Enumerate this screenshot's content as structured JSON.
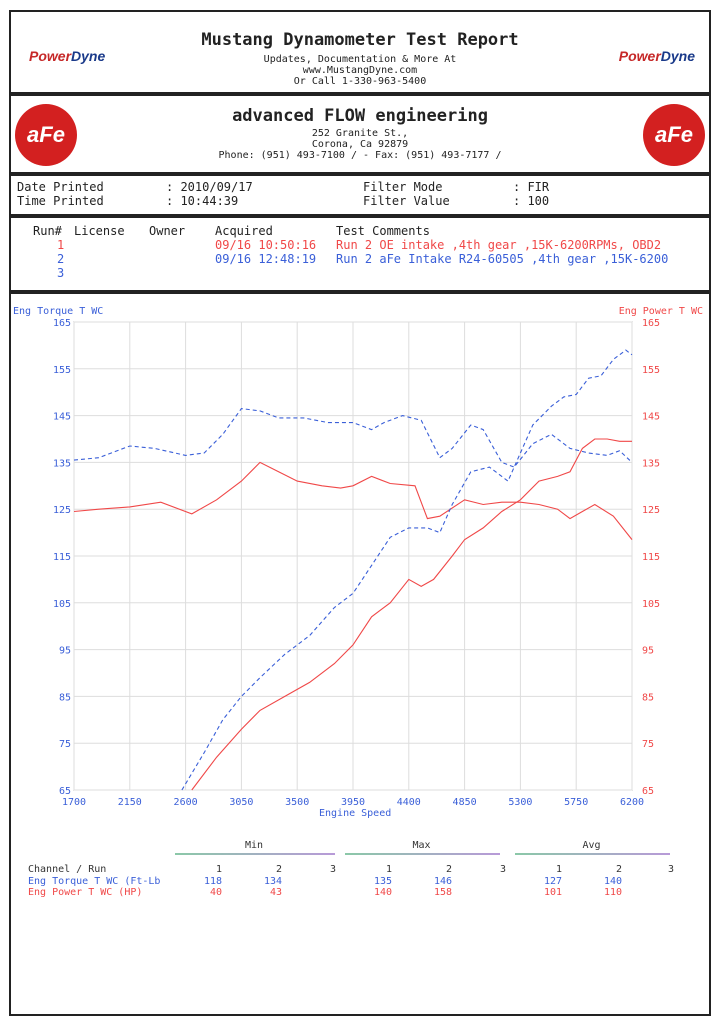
{
  "header": {
    "title": "Mustang Dynamometer Test Report",
    "line1": "Updates, Documentation & More At",
    "line2": "www.MustangDyne.com",
    "line3": "Or Call 1-330-963-5400",
    "logo": "PowerDyne"
  },
  "company": {
    "name": "advanced FLOW engineering",
    "address1": "252 Granite St.,",
    "address2": "Corona, Ca  92879",
    "phone": "Phone: (951) 493-7100 /  - Fax: (951) 493-7177 /",
    "logo": "aFe POWER"
  },
  "info": {
    "date_label": "Date Printed",
    "date_value": ": 2010/09/17",
    "time_label": "Time Printed",
    "time_value": ": 10:44:39",
    "mode_label": "Filter Mode",
    "mode_value": ": FIR",
    "fval_label": "Filter Value",
    "fval_value": ": 100"
  },
  "runs": {
    "headers": [
      "Run#",
      "License",
      "Owner",
      "Acquired",
      "Test Comments"
    ],
    "rows": [
      {
        "run": "1",
        "acquired": "09/16 10:50:16",
        "comment": "Run 2 OE intake ,4th gear ,15K-6200RPMs, OBD2",
        "color": "#f04848"
      },
      {
        "run": "2",
        "acquired": "09/16 12:48:19",
        "comment": "Run 2 aFe Intake R24-60505 ,4th gear ,15K-6200",
        "color": "#3a5fd8"
      },
      {
        "run": "3",
        "acquired": "",
        "comment": "",
        "color": "#3a5fd8"
      }
    ]
  },
  "chart_data": {
    "type": "line",
    "ylabel_left": "Eng Torque T WC",
    "ylabel_right": "Eng Power T WC",
    "xlabel": "Engine Speed",
    "xlim": [
      1700,
      6200
    ],
    "ylim": [
      65,
      165
    ],
    "xticks": [
      1700,
      2150,
      2600,
      3050,
      3500,
      3950,
      4400,
      4850,
      5300,
      5750,
      6200
    ],
    "yticks": [
      65,
      75,
      85,
      95,
      105,
      115,
      125,
      135,
      145,
      155,
      165
    ],
    "grid": true,
    "series": [
      {
        "channel": "torque",
        "run": 1,
        "color": "#f04848",
        "dash": false,
        "x": [
          1700,
          1900,
          2150,
          2400,
          2650,
          2850,
          3050,
          3200,
          3350,
          3500,
          3700,
          3850,
          3950,
          4100,
          4250,
          4450,
          4550,
          4650,
          4850,
          5000,
          5150,
          5300,
          5450,
          5600,
          5700,
          5800,
          5900,
          6050,
          6200
        ],
        "y": [
          124.5,
          125,
          125.5,
          126.5,
          124,
          127,
          131,
          135,
          133,
          131,
          130,
          129.5,
          130,
          132,
          130.5,
          130,
          123,
          123.5,
          127,
          126,
          126.5,
          126.5,
          126,
          125,
          123,
          124.5,
          126,
          123.5,
          118.5
        ]
      },
      {
        "channel": "torque",
        "run": 2,
        "color": "#3a5fd8",
        "dash": true,
        "x": [
          1700,
          1900,
          2150,
          2350,
          2600,
          2750,
          2900,
          3050,
          3200,
          3350,
          3550,
          3750,
          3950,
          4100,
          4200,
          4350,
          4500,
          4650,
          4750,
          4900,
          5000,
          5150,
          5250,
          5400,
          5550,
          5700,
          5850,
          6000,
          6100,
          6200
        ],
        "y": [
          135.5,
          136,
          138.5,
          138,
          136.5,
          137,
          141,
          146.5,
          146,
          144.5,
          144.5,
          143.5,
          143.5,
          142,
          143.5,
          145,
          144,
          136,
          138,
          143,
          142,
          135,
          134,
          139,
          141,
          138,
          137,
          136.5,
          137.5,
          135
        ]
      },
      {
        "channel": "power",
        "run": 1,
        "color": "#f04848",
        "dash": false,
        "x": [
          2650,
          2850,
          3050,
          3200,
          3400,
          3600,
          3800,
          3950,
          4100,
          4250,
          4400,
          4500,
          4600,
          4750,
          4850,
          5000,
          5150,
          5300,
          5450,
          5600,
          5700,
          5800,
          5900,
          6000,
          6100,
          6200
        ],
        "y": [
          65,
          72,
          78,
          82,
          85,
          88,
          92,
          96,
          102,
          105,
          110,
          108.5,
          110,
          115,
          118.5,
          121,
          124.5,
          127,
          131,
          132,
          133,
          138,
          140,
          140,
          139.5,
          139.5
        ]
      },
      {
        "channel": "power",
        "run": 2,
        "color": "#3a5fd8",
        "dash": true,
        "x": [
          2570,
          2750,
          2900,
          3050,
          3200,
          3400,
          3600,
          3800,
          3950,
          4100,
          4250,
          4400,
          4550,
          4650,
          4750,
          4900,
          5050,
          5200,
          5300,
          5400,
          5550,
          5650,
          5750,
          5850,
          5950,
          6050,
          6150,
          6200
        ],
        "y": [
          65,
          73,
          80,
          85,
          89,
          94,
          98,
          104,
          107,
          113,
          119,
          121,
          121,
          120,
          126,
          133,
          134,
          131,
          137,
          143,
          147,
          149,
          149.5,
          153,
          153.5,
          157,
          159,
          158
        ]
      }
    ]
  },
  "stats": {
    "groups": [
      "Min",
      "Max",
      "Avg"
    ],
    "channel_header": "Channel / Run",
    "run_labels": [
      "1",
      "2",
      "3"
    ],
    "rows": [
      {
        "name": "Eng Torque T WC (Ft-Lb",
        "color": "#3a5fd8",
        "min": [
          "118",
          "134",
          ""
        ],
        "max": [
          "135",
          "146",
          ""
        ],
        "avg": [
          "127",
          "140",
          ""
        ]
      },
      {
        "name": "Eng Power T WC (HP)",
        "color": "#f04848",
        "min": [
          "40",
          "43",
          ""
        ],
        "max": [
          "140",
          "158",
          ""
        ],
        "avg": [
          "101",
          "110",
          ""
        ]
      }
    ]
  }
}
